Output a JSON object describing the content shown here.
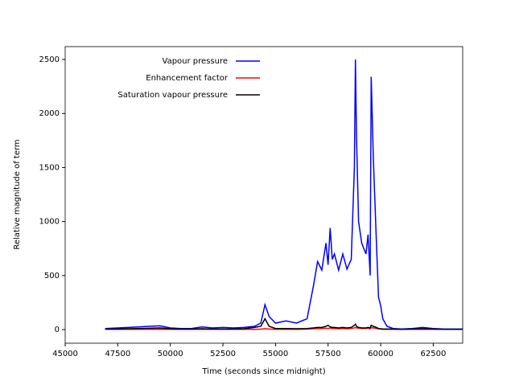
{
  "chart_data": {
    "type": "line",
    "xlabel": "Time (seconds since midnight)",
    "ylabel": "Relative magnitude of term",
    "x": [
      46900,
      47500,
      48000,
      48500,
      49000,
      49500,
      50000,
      50500,
      51000,
      51500,
      52000,
      52500,
      53000,
      53500,
      54000,
      54300,
      54500,
      54700,
      55000,
      55500,
      56000,
      56500,
      56800,
      57000,
      57200,
      57400,
      57500,
      57600,
      57700,
      57800,
      58000,
      58200,
      58400,
      58600,
      58750,
      58800,
      58850,
      58950,
      59100,
      59300,
      59400,
      59500,
      59550,
      59650,
      59800,
      59900,
      60000,
      60100,
      60300,
      60600,
      61000,
      61500,
      62000,
      62500,
      63000,
      63900
    ],
    "series": [
      {
        "name": "Vapour pressure",
        "color": "#0000ff",
        "values": [
          10,
          15,
          20,
          25,
          30,
          35,
          15,
          10,
          10,
          25,
          15,
          20,
          15,
          20,
          30,
          60,
          230,
          120,
          60,
          80,
          60,
          100,
          400,
          630,
          550,
          800,
          600,
          940,
          650,
          700,
          550,
          700,
          560,
          650,
          1500,
          2500,
          1800,
          1000,
          800,
          700,
          880,
          500,
          2340,
          1600,
          800,
          300,
          220,
          100,
          30,
          10,
          5,
          10,
          20,
          10,
          5,
          5
        ]
      },
      {
        "name": "Enhancement factor",
        "color": "#ff0000",
        "values": [
          2,
          2,
          3,
          3,
          3,
          3,
          2,
          2,
          2,
          3,
          2,
          2,
          2,
          2,
          3,
          4,
          8,
          5,
          3,
          3,
          3,
          4,
          8,
          10,
          10,
          12,
          10,
          14,
          10,
          10,
          8,
          10,
          8,
          10,
          15,
          20,
          15,
          12,
          10,
          10,
          12,
          8,
          18,
          15,
          10,
          6,
          5,
          3,
          2,
          2,
          2,
          2,
          2,
          2,
          2,
          2
        ]
      },
      {
        "name": "Saturation vapour pressure",
        "color": "#000000",
        "values": [
          5,
          5,
          8,
          10,
          12,
          15,
          8,
          5,
          5,
          8,
          5,
          5,
          5,
          8,
          20,
          30,
          100,
          30,
          10,
          10,
          8,
          10,
          15,
          20,
          20,
          30,
          40,
          25,
          20,
          20,
          15,
          20,
          15,
          20,
          40,
          50,
          30,
          20,
          15,
          15,
          20,
          15,
          40,
          30,
          20,
          10,
          8,
          5,
          5,
          5,
          3,
          5,
          8,
          5,
          3,
          3
        ]
      }
    ],
    "xlim": [
      45000,
      63900
    ],
    "ylim": [
      -126,
      2619
    ],
    "xticks": [
      45000,
      47500,
      50000,
      52500,
      55000,
      57500,
      60000,
      62500
    ],
    "yticks": [
      0,
      500,
      1000,
      1500,
      2000,
      2500
    ],
    "legend": "upper left"
  }
}
